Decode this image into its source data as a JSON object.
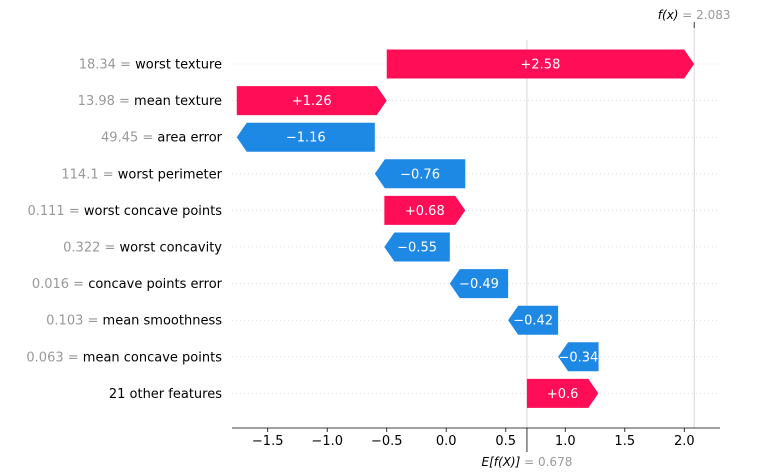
{
  "chart_data": {
    "type": "waterfall",
    "base_value": 0.678,
    "output_value": 2.083,
    "fx_symbol": "f(x)",
    "fx_value_text": "2.083",
    "efx_symbol": "E[f(X)]",
    "efx_value_text": "0.678",
    "xlim": [
      -1.8,
      2.3
    ],
    "xticks": [
      -1.5,
      -1.0,
      -0.5,
      0.0,
      0.5,
      1.0,
      1.5,
      2.0
    ],
    "xtick_labels": [
      "−1.5",
      "−1.0",
      "−0.5",
      "0.0",
      "0.5",
      "1.0",
      "1.5",
      "2.0"
    ],
    "features": [
      {
        "value": "18.34",
        "name": "worst texture",
        "contribution": 2.58,
        "label": "+2.58",
        "left": -0.5,
        "right": 2.083
      },
      {
        "value": "13.98",
        "name": "mean texture",
        "contribution": 1.26,
        "label": "+1.26",
        "left": -1.76,
        "right": -0.5
      },
      {
        "value": "49.45",
        "name": "area error",
        "contribution": -1.16,
        "label": "−1.16",
        "left": -1.76,
        "right": -0.6
      },
      {
        "value": "114.1",
        "name": "worst perimeter",
        "contribution": -0.76,
        "label": "−0.76",
        "left": -0.6,
        "right": 0.16
      },
      {
        "value": "0.111",
        "name": "worst concave points",
        "contribution": 0.68,
        "label": "+0.68",
        "left": -0.52,
        "right": 0.16
      },
      {
        "value": "0.322",
        "name": "worst concavity",
        "contribution": -0.55,
        "label": "−0.55",
        "left": -0.52,
        "right": 0.03
      },
      {
        "value": "0.016",
        "name": "concave points error",
        "contribution": -0.49,
        "label": "−0.49",
        "left": 0.03,
        "right": 0.52
      },
      {
        "value": "0.103",
        "name": "mean smoothness",
        "contribution": -0.42,
        "label": "−0.42",
        "left": 0.52,
        "right": 0.94
      },
      {
        "value": "0.063",
        "name": "mean concave points",
        "contribution": -0.34,
        "label": "−0.34",
        "left": 0.94,
        "right": 1.28
      },
      {
        "value": "",
        "name": "21 other features",
        "contribution": 0.6,
        "label": "+0.6",
        "left": 0.678,
        "right": 1.278
      }
    ],
    "colors": {
      "positive": "#ff0d57",
      "negative": "#1e88e5",
      "gridline": "#cccccc",
      "muted": "#999999"
    }
  }
}
